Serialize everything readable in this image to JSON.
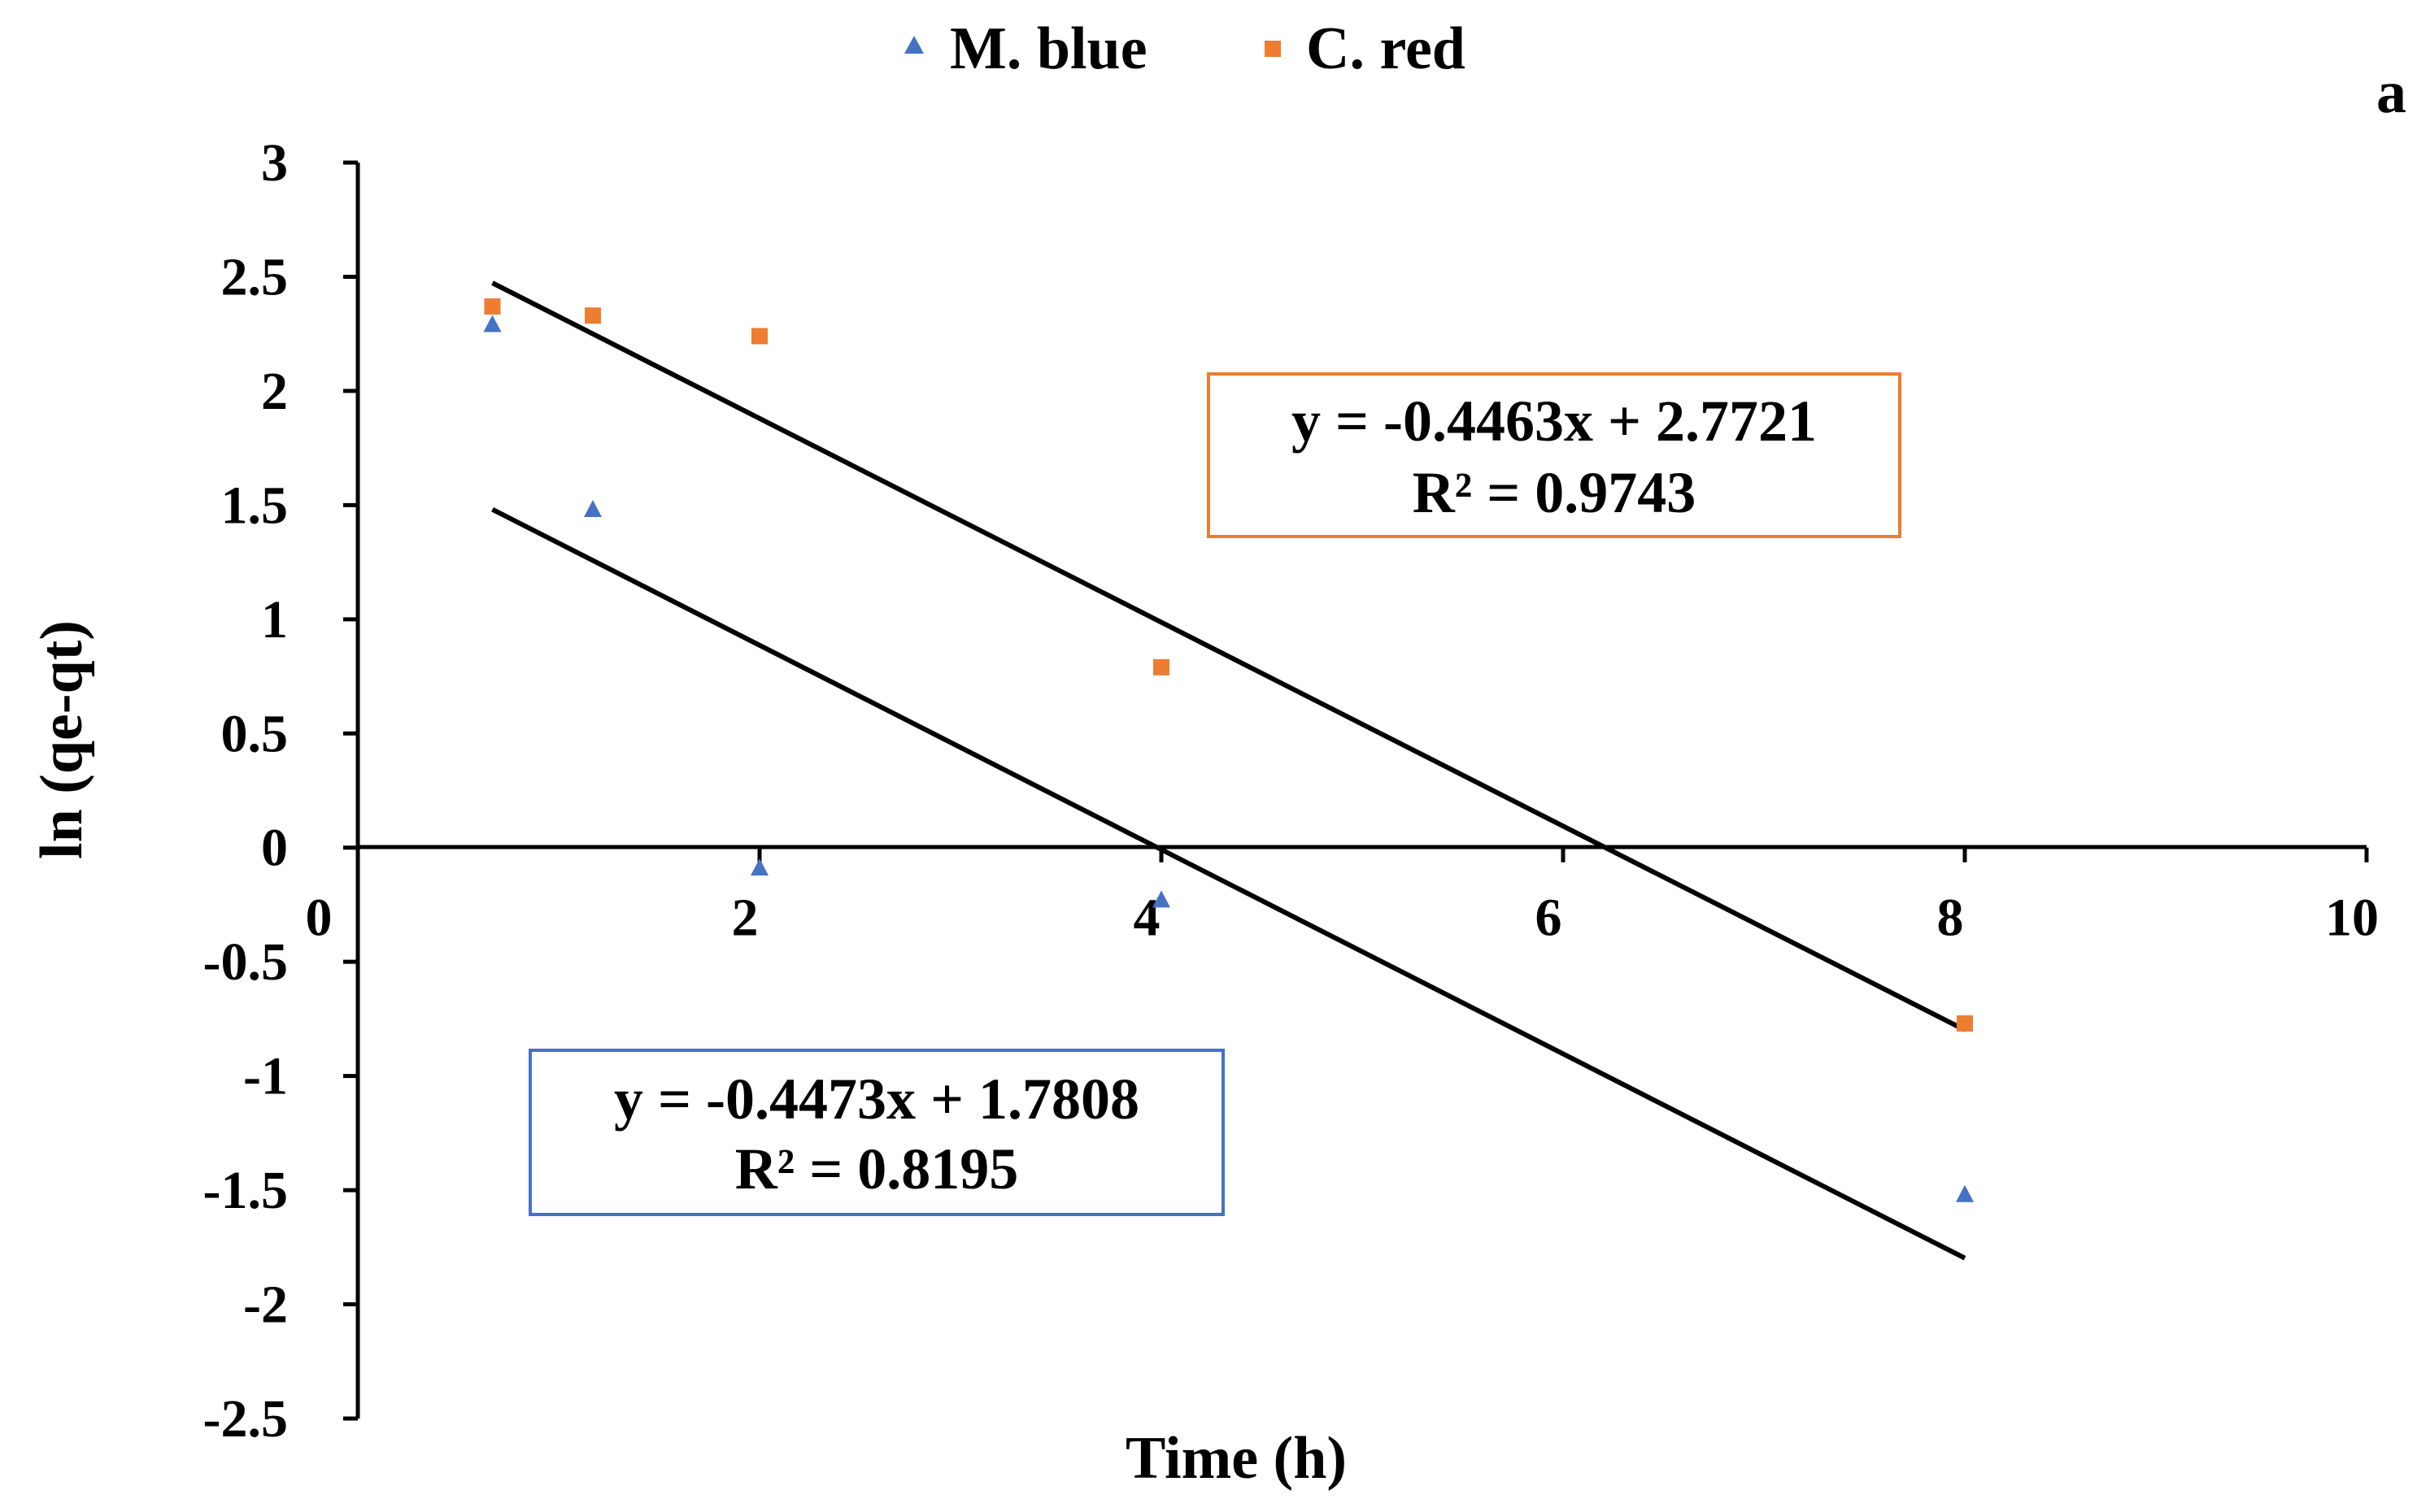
{
  "panel_label": "a",
  "colors": {
    "m_blue": "#4472C4",
    "c_red": "#ED7D31",
    "trendline": "#000000",
    "axis": "#000000"
  },
  "legend": {
    "position": "top-center",
    "items": [
      {
        "label": "M. blue",
        "marker": "triangle",
        "color": "#4472C4"
      },
      {
        "label": "C. red",
        "marker": "square",
        "color": "#ED7D31"
      }
    ]
  },
  "equations": {
    "c_red": {
      "line1": "y = -0.4463x + 2.7721",
      "line2": "R² = 0.9743",
      "border_color": "#ED7D31"
    },
    "m_blue": {
      "line1": "y = -0.4473x + 1.7808",
      "line2": "R² = 0.8195",
      "border_color": "#4472C4"
    }
  },
  "chart_data": {
    "type": "scatter",
    "title": "",
    "xlabel": "Time (h)",
    "ylabel": "ln (qe-qt)",
    "xlim": [
      0,
      10
    ],
    "ylim": [
      -2.5,
      3
    ],
    "x_ticks": [
      "0",
      "2",
      "4",
      "6",
      "8",
      "10"
    ],
    "y_ticks": [
      "3",
      "2.5",
      "2",
      "1.5",
      "1",
      "0.5",
      "0",
      "-0.5",
      "-1",
      "-1.5",
      "-2",
      "-2.5"
    ],
    "grid": false,
    "series": [
      {
        "name": "M. blue",
        "marker": "triangle",
        "color": "#4472C4",
        "points": [
          [
            0.67,
            2.29
          ],
          [
            1.17,
            1.48
          ],
          [
            2.0,
            -0.09
          ],
          [
            4.0,
            -0.23
          ],
          [
            8.0,
            -1.52
          ]
        ],
        "trendline": {
          "slope": -0.4473,
          "intercept": 1.7808,
          "x_range": [
            0.67,
            8.0
          ]
        }
      },
      {
        "name": "C. red",
        "marker": "square",
        "color": "#ED7D31",
        "points": [
          [
            0.67,
            2.37
          ],
          [
            1.17,
            2.33
          ],
          [
            2.0,
            2.24
          ],
          [
            4.0,
            0.79
          ],
          [
            8.0,
            -0.77
          ]
        ],
        "trendline": {
          "slope": -0.4463,
          "intercept": 2.7721,
          "x_range": [
            0.67,
            8.0
          ]
        }
      }
    ]
  }
}
